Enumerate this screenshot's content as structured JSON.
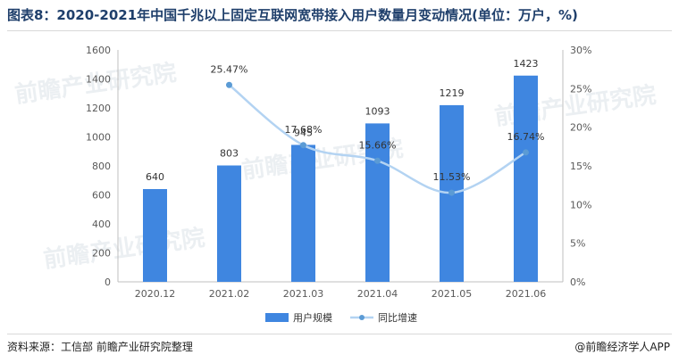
{
  "title": "图表8：2020-2021年中国千兆以上固定互联网宽带接入用户数量月变动情况(单位：万户，%)",
  "source": "资料来源：工信部 前瞻产业研究院整理",
  "brand": "@前瞻经济学人APP",
  "watermark": "前瞻产业研究院",
  "colors": {
    "bar": "#3f86e0",
    "line": "#b3d3f2",
    "marker": "#5b9bd5",
    "title": "#1f3f6b"
  },
  "chart_data": {
    "type": "bar",
    "categories": [
      "2020.12",
      "2021.02",
      "2021.03",
      "2021.04",
      "2021.05",
      "2021.06"
    ],
    "series": [
      {
        "name": "用户规模",
        "type": "bar",
        "axis": "left",
        "values": [
          640,
          803,
          945,
          1093,
          1219,
          1423
        ],
        "labels": [
          "640",
          "803",
          "945",
          "1093",
          "1219",
          "1423"
        ]
      },
      {
        "name": "同比增速",
        "type": "line",
        "axis": "right",
        "values": [
          null,
          25.47,
          17.68,
          15.66,
          11.53,
          16.74
        ],
        "labels": [
          "",
          "25.47%",
          "17.68%",
          "15.66%",
          "11.53%",
          "16.74%"
        ]
      }
    ],
    "y_left": {
      "min": 0,
      "max": 1600,
      "ticks": [
        "0",
        "200",
        "400",
        "600",
        "800",
        "1000",
        "1200",
        "1400",
        "1600"
      ]
    },
    "y_right": {
      "min": 0,
      "max": 30,
      "ticks": [
        "0%",
        "5%",
        "10%",
        "15%",
        "20%",
        "25%",
        "30%"
      ]
    },
    "grid": false,
    "legend_position": "bottom-center"
  }
}
